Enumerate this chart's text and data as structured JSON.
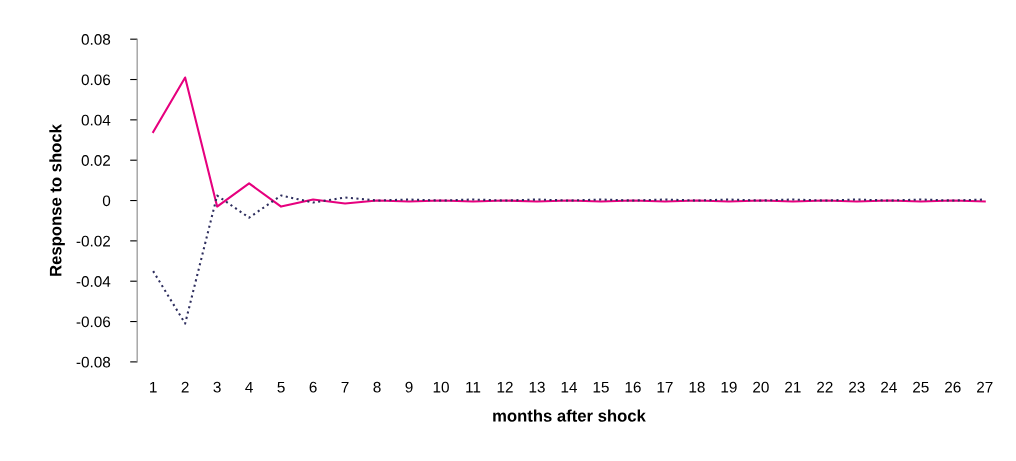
{
  "chart_data": {
    "type": "line",
    "xlabel": "months after shock",
    "ylabel": "Response to shock",
    "categories": [
      "1",
      "2",
      "3",
      "4",
      "5",
      "6",
      "7",
      "8",
      "9",
      "10",
      "11",
      "12",
      "13",
      "14",
      "15",
      "16",
      "17",
      "18",
      "19",
      "20",
      "21",
      "22",
      "23",
      "24",
      "25",
      "26",
      "27"
    ],
    "series": [
      {
        "color": "#e6007e",
        "line_style": "solid",
        "values": [
          0.034,
          0.061,
          -0.003,
          0.0085,
          -0.003,
          0.0005,
          -0.0015,
          0,
          -0.0005,
          0,
          -0.0005,
          0,
          -0.0005,
          0,
          -0.0005,
          0,
          -0.0005,
          0,
          -0.0005,
          0,
          -0.0005,
          0,
          -0.0005,
          0,
          -0.0005,
          0,
          -0.0005
        ]
      },
      {
        "color": "#2e2e5e",
        "line_style": "dotted",
        "values": [
          -0.035,
          -0.061,
          0.0025,
          -0.0085,
          0.0025,
          -0.001,
          0.0015,
          0,
          0.0005,
          0,
          0.0005,
          0,
          0.0005,
          0,
          0.0005,
          0,
          0.0005,
          0,
          0.0005,
          0,
          0.0005,
          0,
          0.0005,
          0,
          0.0005,
          0,
          0.0005
        ]
      }
    ],
    "ylim": [
      -0.08,
      0.08
    ],
    "yticks": [
      {
        "value": -0.08,
        "label": "-0.08"
      },
      {
        "value": -0.06,
        "label": "-0.06"
      },
      {
        "value": -0.04,
        "label": "-0.04"
      },
      {
        "value": -0.02,
        "label": "-0.02"
      },
      0,
      {
        "value": 0.02,
        "label": "0.02"
      },
      {
        "value": 0.04,
        "label": "0.04"
      },
      {
        "value": 0.06,
        "label": "0.06"
      },
      {
        "value": 0.08,
        "label": "0.08"
      }
    ],
    "grid": false,
    "legend": false,
    "marker": "none"
  }
}
